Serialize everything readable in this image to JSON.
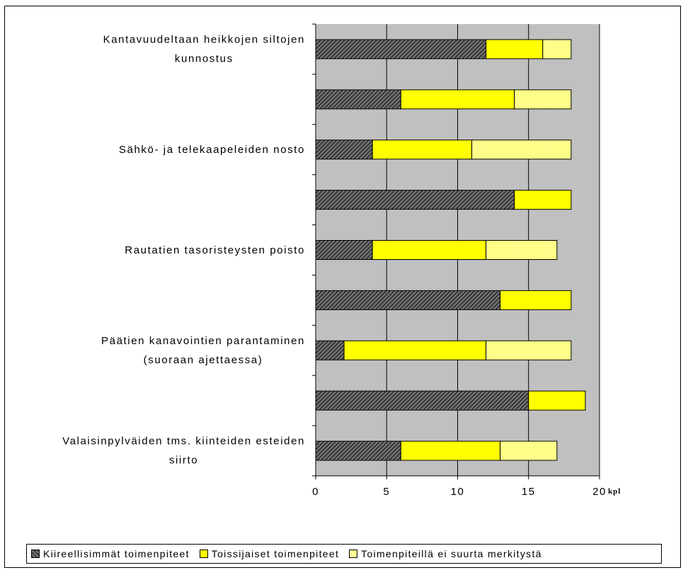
{
  "chart_data": {
    "type": "bar",
    "orientation": "horizontal",
    "stacked": true,
    "categories": [
      [
        "Kantavuudeltaan heikkojen siltojen",
        "kunnostus"
      ],
      [
        ""
      ],
      [
        "Sähkö- ja telekaapeleiden nosto"
      ],
      [
        ""
      ],
      [
        "Rautatien tasoristeysten poisto"
      ],
      [
        ""
      ],
      [
        "Päätien kanavointien parantaminen",
        "(suoraan ajettaessa)"
      ],
      [
        ""
      ],
      [
        "Valaisinpylväiden tms. kiinteiden esteiden",
        "siirto"
      ]
    ],
    "series": [
      {
        "name": "Kiireellisimmät toimenpiteet",
        "color": "#555555",
        "values": [
          12,
          6,
          4,
          14,
          4,
          13,
          2,
          15,
          6
        ]
      },
      {
        "name": "Toissijaiset toimenpiteet",
        "color": "#ffff00",
        "values": [
          4,
          8,
          7,
          4,
          8,
          5,
          10,
          4,
          7
        ]
      },
      {
        "name": "Toimenpiteillä ei suurta merkitystä",
        "color": "#ffff99",
        "values": [
          2,
          4,
          7,
          0,
          5,
          0,
          6,
          0,
          4
        ]
      }
    ],
    "xlim": [
      0,
      20
    ],
    "xticks": [
      0,
      5,
      10,
      15,
      20
    ],
    "xlabel": "kpl",
    "title": "",
    "grid": true,
    "legend": "bottom"
  }
}
